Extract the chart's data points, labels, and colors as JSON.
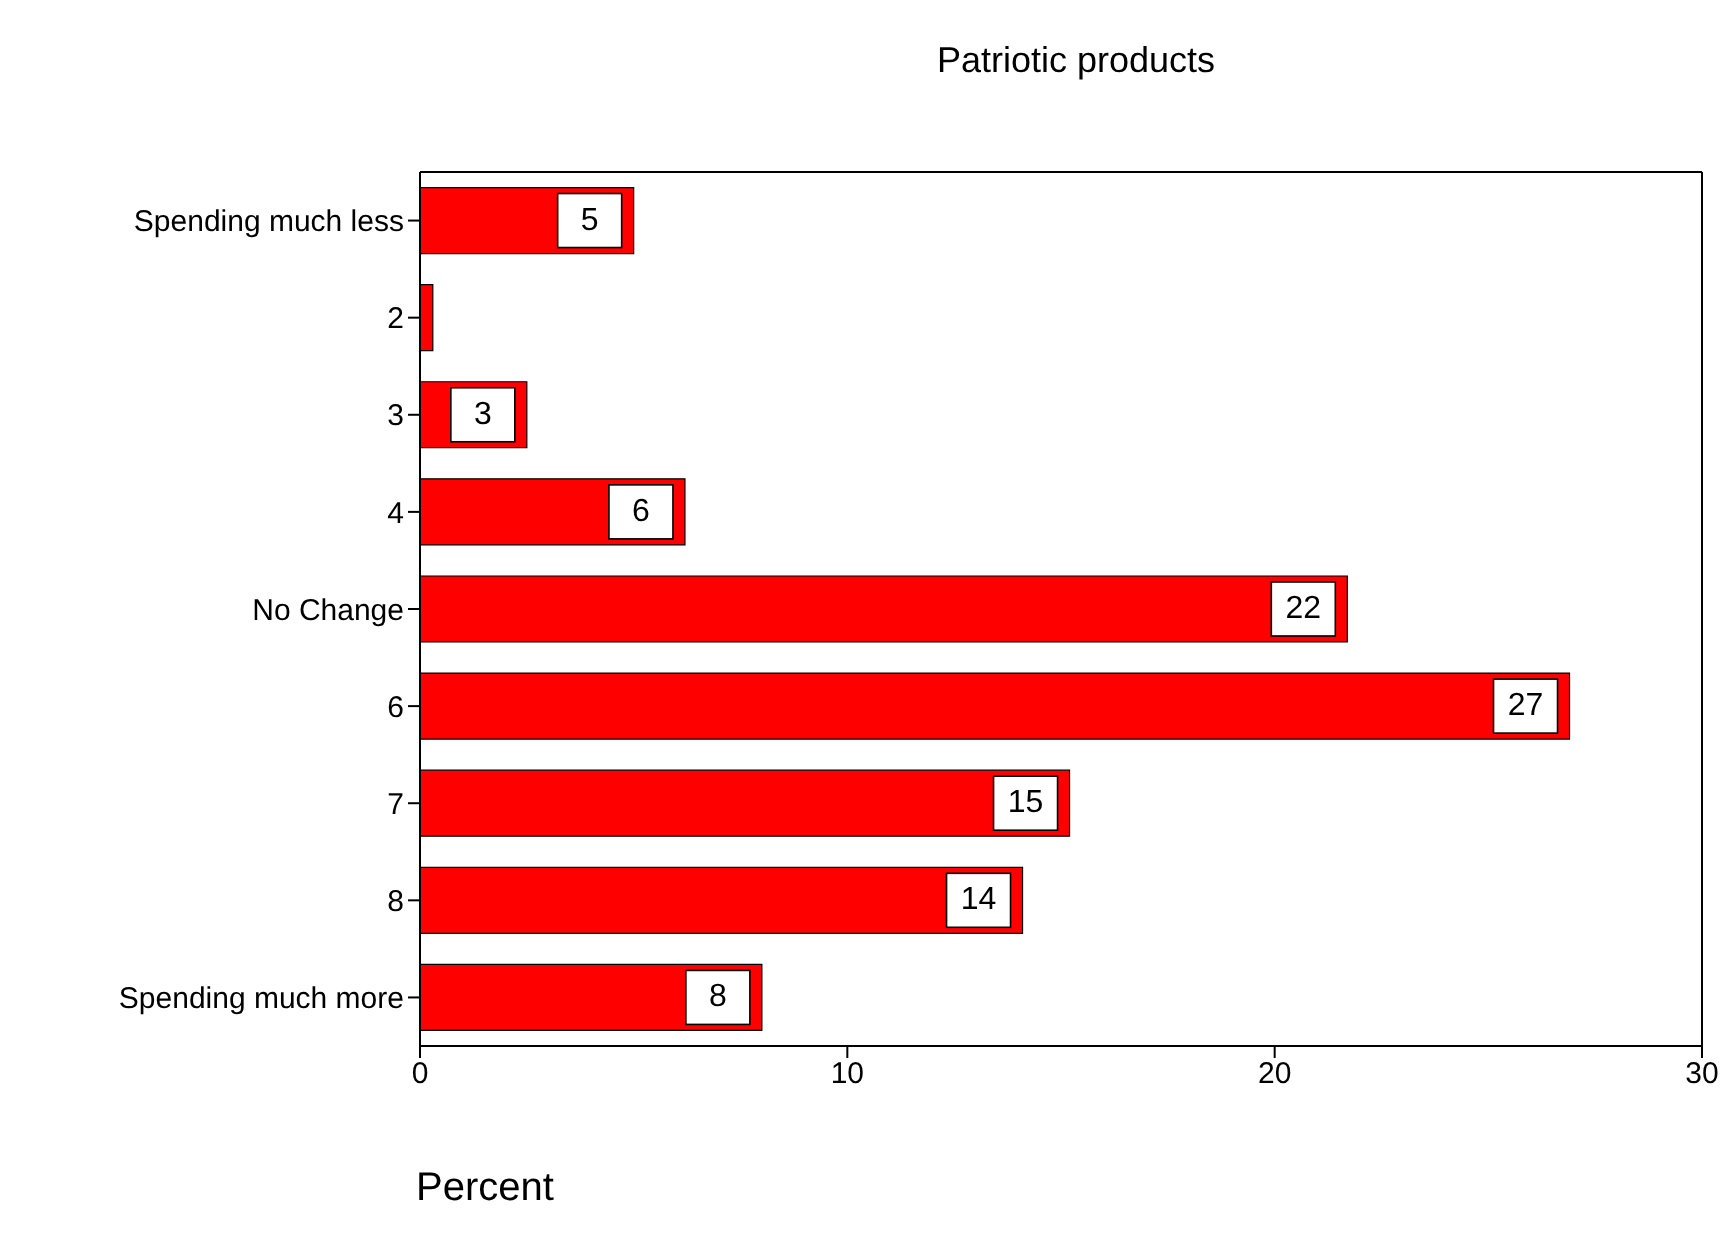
{
  "chart_data": {
    "type": "bar",
    "orientation": "horizontal",
    "title": "Patriotic products",
    "xlabel": "Percent",
    "categories": [
      "Spending much less",
      "2",
      "3",
      "4",
      "No Change",
      "6",
      "7",
      "8",
      "Spending much more"
    ],
    "values": [
      5.0,
      0.3,
      2.5,
      6.2,
      21.7,
      26.9,
      15.2,
      14.1,
      8.0
    ],
    "value_labels": [
      "5",
      null,
      "3",
      "6",
      "22",
      "27",
      "15",
      "14",
      "8"
    ],
    "color": "#ff0000",
    "xlim": [
      0,
      30
    ],
    "xticks": [
      0,
      10,
      20,
      30
    ],
    "grid": false
  }
}
